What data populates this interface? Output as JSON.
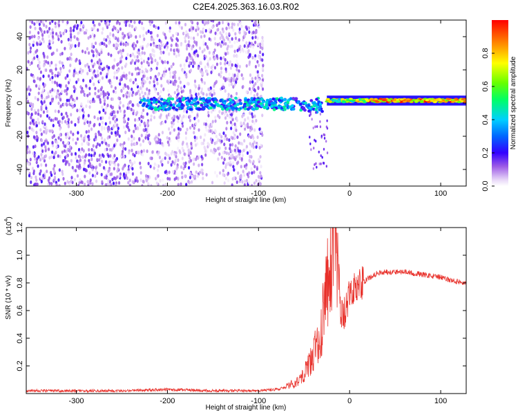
{
  "title": "C2E4.2025.363.16.03.R02",
  "chart_data": [
    {
      "type": "heatmap",
      "title": "C2E4.2025.363.16.03.R02",
      "xlabel": "Height of straight line (km)",
      "ylabel": "Frequency (Hz)",
      "xlim": [
        -355,
        128
      ],
      "ylim": [
        -50,
        50
      ],
      "xticks": [
        -300,
        -200,
        -100,
        0,
        100
      ],
      "yticks": [
        -40,
        -20,
        0,
        20,
        40
      ],
      "colorbar": {
        "label": "Normalized spectral amplitude",
        "range": [
          0,
          1
        ],
        "ticks": [
          "0.0",
          "0.2",
          "0.4",
          "0.6",
          "0.8"
        ]
      },
      "description_regions": [
        {
          "x_range": [
            -355,
            -95
          ],
          "freq_range": [
            -50,
            50
          ],
          "amplitude": "low (0.0-0.2), scattered noise"
        },
        {
          "x_range": [
            -230,
            -30
          ],
          "freq_range": [
            -5,
            5
          ],
          "amplitude": "0.1-0.5 broken band near 0 Hz"
        },
        {
          "x_range": [
            -25,
            128
          ],
          "freq_range": [
            -2,
            4
          ],
          "amplitude": "0.6-1.0 strong continuous band near 1-2 Hz"
        }
      ]
    },
    {
      "type": "line",
      "xlabel": "Height of straight line (km)",
      "ylabel": "SNR (10 * v/v)",
      "y_multiplier": "(x10",
      "y_multiplier_exp": "4",
      "y_multiplier_close": ")",
      "xlim": [
        -355,
        128
      ],
      "ylim": [
        0,
        1.2
      ],
      "xticks": [
        -300,
        -200,
        -100,
        0,
        100
      ],
      "yticks": [
        0.2,
        0.4,
        0.6,
        0.8,
        1.0,
        1.2
      ],
      "ytick_labels": [
        "0.2",
        "0.4",
        "0.6",
        "0.8",
        "1.0",
        "1.2"
      ],
      "series": [
        {
          "name": "SNR",
          "color": "#e8302a",
          "x": [
            -355,
            -300,
            -250,
            -200,
            -150,
            -100,
            -80,
            -60,
            -50,
            -40,
            -30,
            -25,
            -20,
            -17,
            -12,
            -5,
            0,
            10,
            20,
            30,
            40,
            60,
            80,
            100,
            110,
            128
          ],
          "y": [
            0.02,
            0.02,
            0.02,
            0.03,
            0.02,
            0.02,
            0.03,
            0.06,
            0.12,
            0.22,
            0.42,
            0.62,
            0.78,
            1.2,
            0.55,
            0.58,
            0.72,
            0.78,
            0.83,
            0.87,
            0.88,
            0.88,
            0.86,
            0.84,
            0.82,
            0.8
          ]
        }
      ]
    }
  ]
}
